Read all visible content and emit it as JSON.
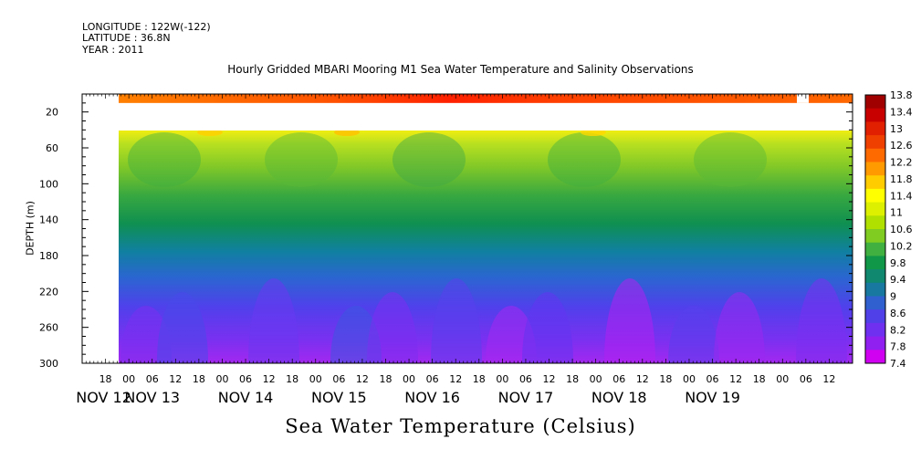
{
  "header": {
    "longitude": "LONGITUDE : 122W(-122)",
    "latitude": "LATITUDE : 36.8N",
    "year": "YEAR : 2011"
  },
  "chart_data": {
    "type": "heatmap",
    "title": "Hourly Gridded MBARI Mooring M1 Sea Water Temperature and Salinity Observations",
    "xlabel": "Sea Water Temperature (Celsius)",
    "ylabel": "DEPTH (m)",
    "ylim": [
      300,
      0
    ],
    "y_ticks": [
      20,
      60,
      100,
      140,
      180,
      220,
      260,
      300
    ],
    "xlim_hours": [
      0,
      198
    ],
    "x_hour_ticks": [
      "18",
      "00",
      "06",
      "12",
      "18",
      "00",
      "06",
      "12",
      "18",
      "00",
      "06",
      "12",
      "18",
      "00",
      "06",
      "12",
      "18",
      "00",
      "06",
      "12",
      "18",
      "00",
      "06",
      "12",
      "18",
      "00",
      "06",
      "12",
      "18",
      "00",
      "06",
      "12"
    ],
    "x_day_labels": [
      "NOV 12",
      "NOV 13",
      "NOV 14",
      "NOV 15",
      "NOV 16",
      "NOV 17",
      "NOV 18",
      "NOV 19"
    ],
    "colorbar_ticks": [
      13.8,
      13.4,
      13,
      12.6,
      12.2,
      11.8,
      11.4,
      11,
      10.6,
      10.2,
      9.8,
      9.4,
      9,
      8.6,
      8.2,
      7.8,
      7.4
    ],
    "colorbar_colors": [
      "#a00000",
      "#c80000",
      "#e02000",
      "#f04000",
      "#ff6a00",
      "#ff9a00",
      "#ffcc00",
      "#ffff00",
      "#ddf000",
      "#b0e000",
      "#80cc20",
      "#40b040",
      "#109848",
      "#108870",
      "#1878a0",
      "#3060d0",
      "#5040e8",
      "#7030f0",
      "#9020f0",
      "#d000f0"
    ],
    "surface_layer": {
      "depth_range": [
        0,
        10
      ],
      "temperature_approx": 12.5
    },
    "data_gap": {
      "depth_range": [
        10,
        40
      ]
    },
    "profile": [
      {
        "depth": 40,
        "temperature": 11.0
      },
      {
        "depth": 60,
        "temperature": 10.5
      },
      {
        "depth": 100,
        "temperature": 9.9
      },
      {
        "depth": 140,
        "temperature": 9.2
      },
      {
        "depth": 180,
        "temperature": 8.8
      },
      {
        "depth": 220,
        "temperature": 8.4
      },
      {
        "depth": 260,
        "temperature": 8.0
      },
      {
        "depth": 300,
        "temperature": 7.6
      }
    ]
  }
}
